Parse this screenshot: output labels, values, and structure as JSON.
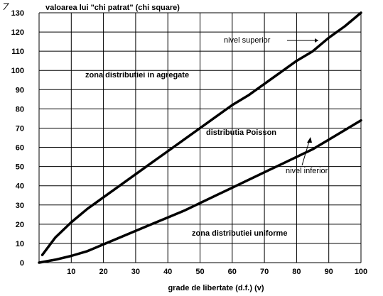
{
  "chart_data": {
    "type": "line",
    "title": "valoarea lui \"chi patrat\" (chi square)",
    "xlabel": "grade de libertate (d.f.) (v)",
    "ylabel": "",
    "xlim": [
      0,
      100
    ],
    "ylim": [
      0,
      130
    ],
    "x_ticks": [
      "10",
      "20",
      "30",
      "40",
      "50",
      "60",
      "70",
      "80",
      "90",
      "100"
    ],
    "y_ticks": [
      "0",
      "10",
      "20",
      "30",
      "40",
      "50",
      "60",
      "70",
      "80",
      "90",
      "100",
      "110",
      "120",
      "130"
    ],
    "grid": true,
    "series": [
      {
        "name": "nivel superior",
        "points": [
          [
            1,
            4
          ],
          [
            5,
            13
          ],
          [
            10,
            21
          ],
          [
            15,
            28
          ],
          [
            20,
            34
          ],
          [
            25,
            40
          ],
          [
            30,
            46
          ],
          [
            35,
            52
          ],
          [
            40,
            58
          ],
          [
            45,
            64
          ],
          [
            50,
            70
          ],
          [
            55,
            76
          ],
          [
            60,
            82
          ],
          [
            65,
            87
          ],
          [
            70,
            93
          ],
          [
            75,
            99
          ],
          [
            80,
            105
          ],
          [
            85,
            110
          ],
          [
            90,
            117
          ],
          [
            95,
            123
          ],
          [
            100,
            130
          ]
        ]
      },
      {
        "name": "nivel inferior",
        "points": [
          [
            0,
            0
          ],
          [
            5,
            1.5
          ],
          [
            10,
            3.5
          ],
          [
            15,
            6
          ],
          [
            20,
            9.5
          ],
          [
            25,
            13
          ],
          [
            30,
            16.5
          ],
          [
            35,
            20
          ],
          [
            40,
            23.5
          ],
          [
            45,
            27
          ],
          [
            50,
            31
          ],
          [
            55,
            35
          ],
          [
            60,
            39
          ],
          [
            65,
            43
          ],
          [
            70,
            47
          ],
          [
            75,
            51
          ],
          [
            80,
            55
          ],
          [
            85,
            59
          ],
          [
            90,
            64
          ],
          [
            95,
            69
          ],
          [
            100,
            74
          ]
        ]
      }
    ],
    "annotations": [
      "zona distributiei in agregate",
      "distributia Poisson",
      "zona distributiei uniforme",
      "nivel superior",
      "nivel inferior"
    ]
  }
}
